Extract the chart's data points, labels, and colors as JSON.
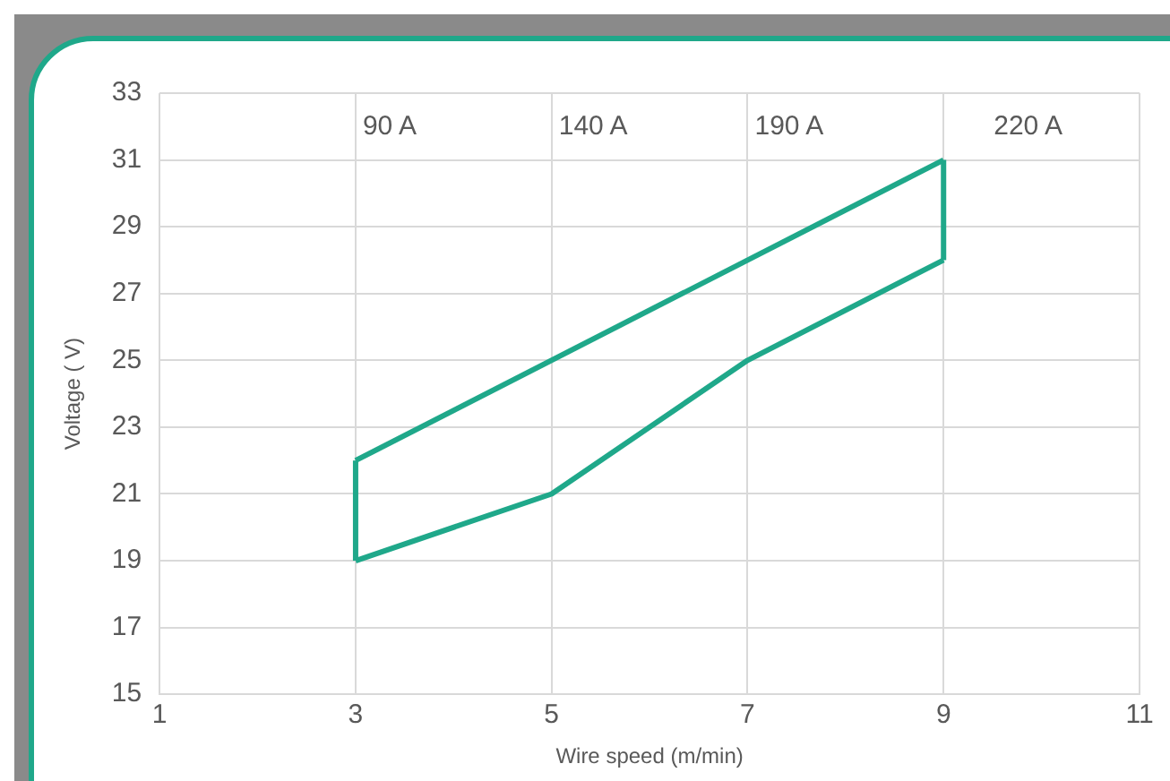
{
  "chart_data": {
    "type": "line",
    "xlabel": "Wire speed (m/min)",
    "ylabel": "Voltage ( V)",
    "series": [
      {
        "color": "#1fa88a",
        "x": [
          3,
          9
        ],
        "values": [
          22,
          31
        ]
      },
      {
        "color": "#1fa88a",
        "x": [
          3,
          5,
          7,
          9
        ],
        "values": [
          19,
          21,
          25,
          28
        ]
      },
      {
        "color": "#1fa88a",
        "x": [
          3,
          3
        ],
        "values": [
          19,
          22
        ]
      },
      {
        "color": "#1fa88a",
        "x": [
          9,
          9
        ],
        "values": [
          28,
          31
        ]
      }
    ],
    "xlim": [
      1,
      11
    ],
    "xticks": [
      1,
      3,
      5,
      7,
      9,
      11
    ],
    "ylim": [
      15,
      33
    ],
    "yticks": [
      15,
      17,
      19,
      21,
      23,
      25,
      27,
      29,
      31,
      33
    ],
    "grid": true,
    "marker": "none",
    "line_style": "solid",
    "legend": false,
    "annotations": [
      "90 A",
      "140 A",
      "190 A",
      "220 A"
    ]
  }
}
